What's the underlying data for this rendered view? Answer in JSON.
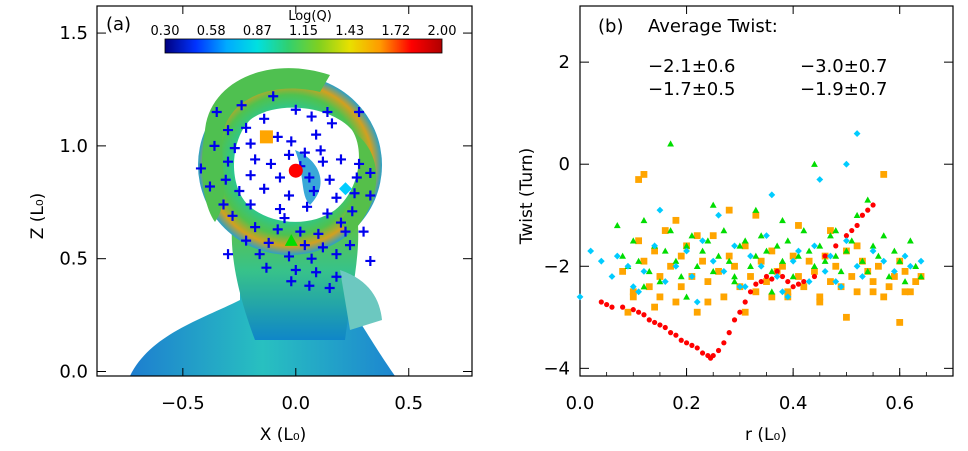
{
  "chart_data": [
    {
      "panel_label": "(a)",
      "type": "heatmap",
      "xlabel": "X (L₀)",
      "ylabel": "Z (L₀)",
      "xlim": [
        -0.88,
        0.78
      ],
      "ylim": [
        -0.02,
        1.62
      ],
      "xticks": [
        "−0.5",
        "0.0",
        "0.5"
      ],
      "yticks": [
        "0.0",
        "0.5",
        "1.0",
        "1.5"
      ],
      "xtick_values": [
        -0.5,
        0.0,
        0.5
      ],
      "ytick_values": [
        0.0,
        0.5,
        1.0,
        1.5
      ],
      "colorbar": {
        "title": "Log(Q)",
        "ticks": [
          "0.30",
          "0.58",
          "0.87",
          "1.15",
          "1.43",
          "1.72",
          "2.00"
        ],
        "range": [
          0.3,
          2.0
        ],
        "colormap": [
          "#000080",
          "#0033ff",
          "#00aaff",
          "#00e0e0",
          "#30d070",
          "#80d020",
          "#e8e000",
          "#ff9900",
          "#ff0000",
          "#b00000"
        ]
      },
      "markers": [
        {
          "shape": "square",
          "color": "#ffa500",
          "x": -0.13,
          "y": 1.04
        },
        {
          "shape": "circle",
          "color": "#ff0000",
          "x": 0.0,
          "y": 0.89
        },
        {
          "shape": "diamond",
          "color": "#00ccff",
          "x": 0.22,
          "y": 0.81
        },
        {
          "shape": "triangle",
          "color": "#00dd00",
          "x": -0.02,
          "y": 0.58
        }
      ],
      "crosses": {
        "color": "#0000ee",
        "points": [
          [
            -0.1,
            1.22
          ],
          [
            -0.24,
            1.18
          ],
          [
            -0.35,
            1.15
          ],
          [
            -0.14,
            1.12
          ],
          [
            0.0,
            1.16
          ],
          [
            0.07,
            1.13
          ],
          [
            0.14,
            1.15
          ],
          [
            0.16,
            1.1
          ],
          [
            0.28,
            1.15
          ],
          [
            -0.3,
            1.07
          ],
          [
            -0.22,
            1.08
          ],
          [
            -0.36,
            1.0
          ],
          [
            -0.27,
            0.99
          ],
          [
            -0.2,
            1.01
          ],
          [
            -0.08,
            1.04
          ],
          [
            -0.02,
            1.02
          ],
          [
            0.09,
            1.05
          ],
          [
            0.04,
            0.97
          ],
          [
            -0.03,
            0.96
          ],
          [
            -0.18,
            0.94
          ],
          [
            -0.3,
            0.93
          ],
          [
            -0.42,
            0.9
          ],
          [
            -0.11,
            0.92
          ],
          [
            0.02,
            0.91
          ],
          [
            0.12,
            0.93
          ],
          [
            0.2,
            0.94
          ],
          [
            0.28,
            0.92
          ],
          [
            0.33,
            0.88
          ],
          [
            0.27,
            0.86
          ],
          [
            0.15,
            0.85
          ],
          [
            0.06,
            0.86
          ],
          [
            -0.07,
            0.86
          ],
          [
            -0.2,
            0.87
          ],
          [
            -0.31,
            0.85
          ],
          [
            -0.38,
            0.82
          ],
          [
            -0.25,
            0.8
          ],
          [
            -0.14,
            0.81
          ],
          [
            -0.03,
            0.78
          ],
          [
            0.08,
            0.8
          ],
          [
            0.18,
            0.77
          ],
          [
            0.26,
            0.79
          ],
          [
            0.33,
            0.78
          ],
          [
            -0.32,
            0.74
          ],
          [
            -0.2,
            0.74
          ],
          [
            -0.07,
            0.72
          ],
          [
            0.05,
            0.73
          ],
          [
            0.14,
            0.7
          ],
          [
            0.25,
            0.71
          ],
          [
            -0.28,
            0.69
          ],
          [
            0.2,
            0.66
          ],
          [
            -0.18,
            0.64
          ],
          [
            -0.08,
            0.63
          ],
          [
            0.02,
            0.62
          ],
          [
            0.1,
            0.61
          ],
          [
            0.22,
            0.62
          ],
          [
            -0.22,
            0.58
          ],
          [
            -0.12,
            0.57
          ],
          [
            0.04,
            0.56
          ],
          [
            0.12,
            0.55
          ],
          [
            0.24,
            0.56
          ],
          [
            -0.3,
            0.52
          ],
          [
            -0.16,
            0.52
          ],
          [
            -0.03,
            0.51
          ],
          [
            0.07,
            0.5
          ],
          [
            0.18,
            0.52
          ],
          [
            -0.13,
            0.46
          ],
          [
            0.0,
            0.45
          ],
          [
            0.09,
            0.44
          ],
          [
            0.18,
            0.42
          ],
          [
            -0.02,
            0.4
          ],
          [
            0.06,
            0.38
          ],
          [
            0.15,
            0.37
          ],
          [
            0.33,
            0.49
          ],
          [
            0.3,
            0.62
          ],
          [
            -0.05,
            0.68
          ],
          [
            0.11,
            0.98
          ]
        ]
      }
    },
    {
      "panel_label": "(b)",
      "type": "scatter",
      "title": "Average Twist:",
      "xlabel": "r (L₀)",
      "ylabel": "Twist (Turn)",
      "xlim": [
        0.0,
        0.7
      ],
      "ylim": [
        -4.15,
        3.1
      ],
      "xticks": [
        "0.0",
        "0.2",
        "0.4",
        "0.6"
      ],
      "yticks": [
        "−4",
        "−2",
        "0",
        "2"
      ],
      "xtick_values": [
        0.0,
        0.2,
        0.4,
        0.6
      ],
      "ytick_values": [
        -4,
        -2,
        0,
        2
      ],
      "annotations": [
        {
          "text": "−2.1±0.6",
          "color": "#ffa500"
        },
        {
          "text": "−3.0±0.7",
          "color": "#ff0000"
        },
        {
          "text": "−1.7±0.5",
          "color": "#00dd00"
        },
        {
          "text": "−1.9±0.7",
          "color": "#00ccff"
        }
      ],
      "series": [
        {
          "color": "#ffa500",
          "marker": "square",
          "x": [
            0.08,
            0.09,
            0.1,
            0.11,
            0.11,
            0.12,
            0.13,
            0.14,
            0.15,
            0.15,
            0.16,
            0.17,
            0.18,
            0.19,
            0.19,
            0.2,
            0.21,
            0.22,
            0.23,
            0.24,
            0.25,
            0.26,
            0.27,
            0.28,
            0.29,
            0.3,
            0.31,
            0.32,
            0.33,
            0.34,
            0.35,
            0.36,
            0.37,
            0.38,
            0.39,
            0.4,
            0.41,
            0.42,
            0.43,
            0.44,
            0.45,
            0.46,
            0.47,
            0.48,
            0.49,
            0.5,
            0.51,
            0.52,
            0.53,
            0.54,
            0.55,
            0.56,
            0.57,
            0.58,
            0.59,
            0.6,
            0.61,
            0.62,
            0.63,
            0.64,
            0.12,
            0.18,
            0.22,
            0.28,
            0.33,
            0.36,
            0.41,
            0.47,
            0.52,
            0.57,
            0.6,
            0.61,
            0.1,
            0.14,
            0.24,
            0.31,
            0.39,
            0.45,
            0.5,
            0.55
          ],
          "y": [
            -2.1,
            -2.9,
            -2.6,
            -1.5,
            -0.3,
            -1.9,
            -2.4,
            -1.7,
            -2.6,
            -2.2,
            -1.3,
            -2.0,
            -2.7,
            -1.8,
            -2.4,
            -1.6,
            -2.2,
            -2.9,
            -1.9,
            -2.3,
            -1.4,
            -2.1,
            -2.6,
            -1.8,
            -2.0,
            -2.4,
            -1.6,
            -2.2,
            -2.5,
            -1.9,
            -2.3,
            -1.7,
            -2.1,
            -2.0,
            -2.5,
            -1.8,
            -2.2,
            -2.4,
            -1.9,
            -2.1,
            -2.6,
            -1.8,
            -2.3,
            -2.0,
            -2.4,
            -1.7,
            -2.2,
            -2.5,
            -1.9,
            -2.1,
            -2.3,
            -2.0,
            -2.6,
            -2.4,
            -2.2,
            -1.9,
            -2.1,
            -2.5,
            -2.3,
            -2.2,
            -0.2,
            -1.1,
            -1.4,
            -0.9,
            -1.0,
            -2.6,
            -1.2,
            -1.3,
            -1.6,
            -0.2,
            -3.1,
            -2.5,
            -2.5,
            -2.8,
            -2.7,
            -2.9,
            -2.6,
            -2.7,
            -3.0,
            -2.5
          ]
        },
        {
          "color": "#ff0000",
          "marker": "circle",
          "x": [
            0.04,
            0.05,
            0.06,
            0.08,
            0.1,
            0.11,
            0.12,
            0.13,
            0.14,
            0.15,
            0.16,
            0.17,
            0.18,
            0.19,
            0.2,
            0.21,
            0.22,
            0.23,
            0.24,
            0.245,
            0.25,
            0.26,
            0.27,
            0.28,
            0.29,
            0.3,
            0.31,
            0.32,
            0.33,
            0.34,
            0.35,
            0.36,
            0.37,
            0.38,
            0.39,
            0.4,
            0.41,
            0.42,
            0.44,
            0.46,
            0.48,
            0.5,
            0.51,
            0.52,
            0.53,
            0.54,
            0.55
          ],
          "y": [
            -2.7,
            -2.75,
            -2.8,
            -2.8,
            -2.85,
            -2.9,
            -2.95,
            -3.05,
            -3.1,
            -3.15,
            -3.2,
            -3.3,
            -3.35,
            -3.45,
            -3.5,
            -3.55,
            -3.6,
            -3.7,
            -3.75,
            -3.8,
            -3.75,
            -3.65,
            -3.5,
            -3.3,
            -3.05,
            -2.9,
            -2.7,
            -2.5,
            -2.35,
            -2.3,
            -2.2,
            -2.25,
            -2.1,
            -2.2,
            -2.3,
            -2.4,
            -2.35,
            -2.3,
            -2.2,
            -1.8,
            -1.6,
            -1.4,
            -1.3,
            -1.2,
            -1.0,
            -0.9,
            -0.8
          ]
        },
        {
          "color": "#00dd00",
          "marker": "triangle",
          "x": [
            0.07,
            0.08,
            0.09,
            0.1,
            0.11,
            0.12,
            0.13,
            0.14,
            0.15,
            0.16,
            0.17,
            0.18,
            0.19,
            0.2,
            0.21,
            0.22,
            0.23,
            0.24,
            0.25,
            0.26,
            0.27,
            0.28,
            0.29,
            0.3,
            0.31,
            0.32,
            0.33,
            0.34,
            0.35,
            0.36,
            0.37,
            0.38,
            0.39,
            0.4,
            0.41,
            0.42,
            0.43,
            0.44,
            0.45,
            0.46,
            0.47,
            0.48,
            0.49,
            0.5,
            0.51,
            0.52,
            0.53,
            0.54,
            0.55,
            0.56,
            0.57,
            0.58,
            0.59,
            0.6,
            0.61,
            0.62,
            0.63,
            0.64,
            0.17,
            0.25,
            0.33,
            0.38,
            0.44,
            0.12,
            0.2,
            0.29,
            0.36,
            0.48,
            0.54
          ],
          "y": [
            -1.2,
            -1.8,
            -2.0,
            -1.5,
            -1.9,
            -1.1,
            -2.1,
            -1.6,
            -2.3,
            -1.7,
            -1.3,
            -1.9,
            -2.2,
            -1.6,
            -1.4,
            -2.0,
            -1.7,
            -1.5,
            -2.1,
            -1.8,
            -1.3,
            -1.9,
            -2.2,
            -1.6,
            -1.5,
            -2.0,
            -1.8,
            -1.4,
            -1.7,
            -2.1,
            -1.6,
            -1.9,
            -1.5,
            -2.2,
            -1.8,
            -1.3,
            -1.7,
            -2.0,
            -1.6,
            -1.9,
            -1.4,
            -1.8,
            -2.1,
            -1.7,
            -1.5,
            -1.0,
            -1.9,
            -2.1,
            -1.6,
            -1.8,
            -1.4,
            -2.2,
            -1.7,
            -1.9,
            -2.3,
            -1.5,
            -2.0,
            -2.2,
            0.4,
            -0.8,
            -0.9,
            -1.1,
            0.0,
            -2.4,
            -2.6,
            -2.3,
            -2.5,
            -1.3,
            -0.7
          ]
        },
        {
          "color": "#00ccff",
          "marker": "diamond",
          "x": [
            0.0,
            0.02,
            0.04,
            0.06,
            0.07,
            0.09,
            0.1,
            0.12,
            0.14,
            0.16,
            0.18,
            0.2,
            0.21,
            0.23,
            0.25,
            0.27,
            0.29,
            0.31,
            0.32,
            0.34,
            0.35,
            0.37,
            0.38,
            0.4,
            0.41,
            0.43,
            0.44,
            0.46,
            0.47,
            0.49,
            0.5,
            0.52,
            0.53,
            0.55,
            0.57,
            0.59,
            0.61,
            0.62,
            0.64,
            0.15,
            0.26,
            0.36,
            0.45,
            0.5,
            0.52,
            0.11,
            0.22,
            0.3,
            0.39,
            0.48
          ],
          "y": [
            -2.6,
            -1.7,
            -1.9,
            -2.2,
            -1.8,
            -2.0,
            -2.4,
            -2.1,
            -1.6,
            -2.3,
            -2.0,
            -1.7,
            -2.2,
            -1.5,
            -1.9,
            -2.1,
            -1.6,
            -2.4,
            -1.8,
            -2.0,
            -1.4,
            -2.2,
            -2.5,
            -1.9,
            -1.7,
            -2.3,
            -1.6,
            -2.1,
            -1.8,
            -2.4,
            -1.5,
            -2.0,
            -2.2,
            -1.7,
            -1.9,
            -2.1,
            -1.8,
            -2.0,
            -1.9,
            -0.9,
            -1.0,
            -0.6,
            -0.3,
            0.0,
            0.6,
            -2.5,
            -2.7,
            -2.4,
            -2.6,
            -2.3
          ]
        }
      ]
    }
  ]
}
